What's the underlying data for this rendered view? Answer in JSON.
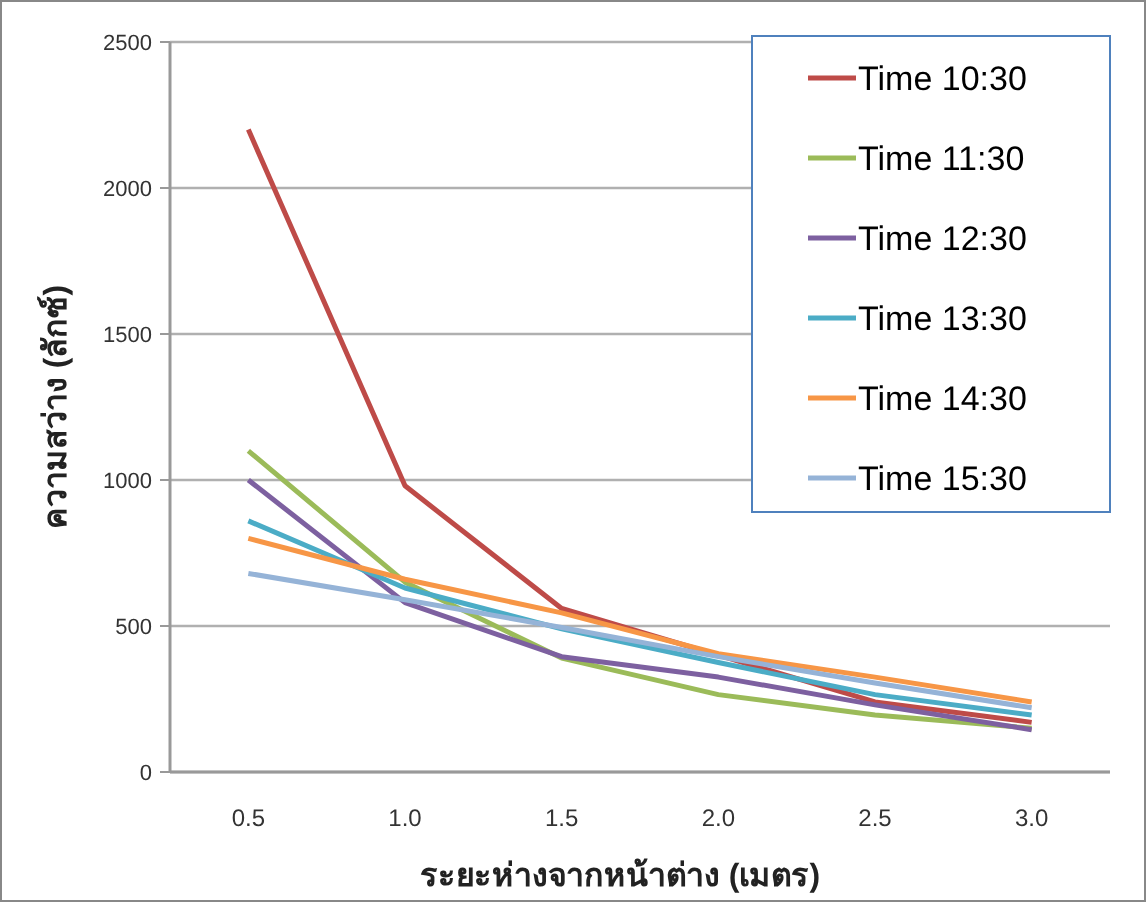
{
  "chart_data": {
    "type": "line",
    "xlabel": "ระยะห่างจากหน้าต่าง (เมตร)",
    "ylabel": "ความสว่าง (ลักซ์)",
    "categories": [
      "0.5",
      "1.0",
      "1.5",
      "2.0",
      "2.5",
      "3.0"
    ],
    "series": [
      {
        "name": "Time 10:30",
        "color": "#be4b48",
        "values": [
          2200,
          980,
          560,
          400,
          240,
          170
        ]
      },
      {
        "name": "Time 11:30",
        "color": "#9bbb59",
        "values": [
          1100,
          650,
          390,
          265,
          195,
          150
        ]
      },
      {
        "name": "Time 12:30",
        "color": "#7d60a0",
        "values": [
          1000,
          580,
          395,
          325,
          230,
          145
        ]
      },
      {
        "name": "Time 13:30",
        "color": "#4bacc6",
        "values": [
          860,
          630,
          490,
          375,
          265,
          195
        ]
      },
      {
        "name": "Time 14:30",
        "color": "#f79646",
        "values": [
          800,
          660,
          545,
          405,
          325,
          240
        ]
      },
      {
        "name": "Time 15:30",
        "color": "#95b3d7",
        "values": [
          680,
          590,
          495,
          395,
          305,
          220
        ]
      }
    ],
    "ylim": [
      0,
      2500
    ],
    "yticks": [
      0,
      500,
      1000,
      1500,
      2000,
      2500
    ],
    "grid": "y",
    "legend": "top right",
    "marker": "none",
    "line_style": "solid"
  }
}
